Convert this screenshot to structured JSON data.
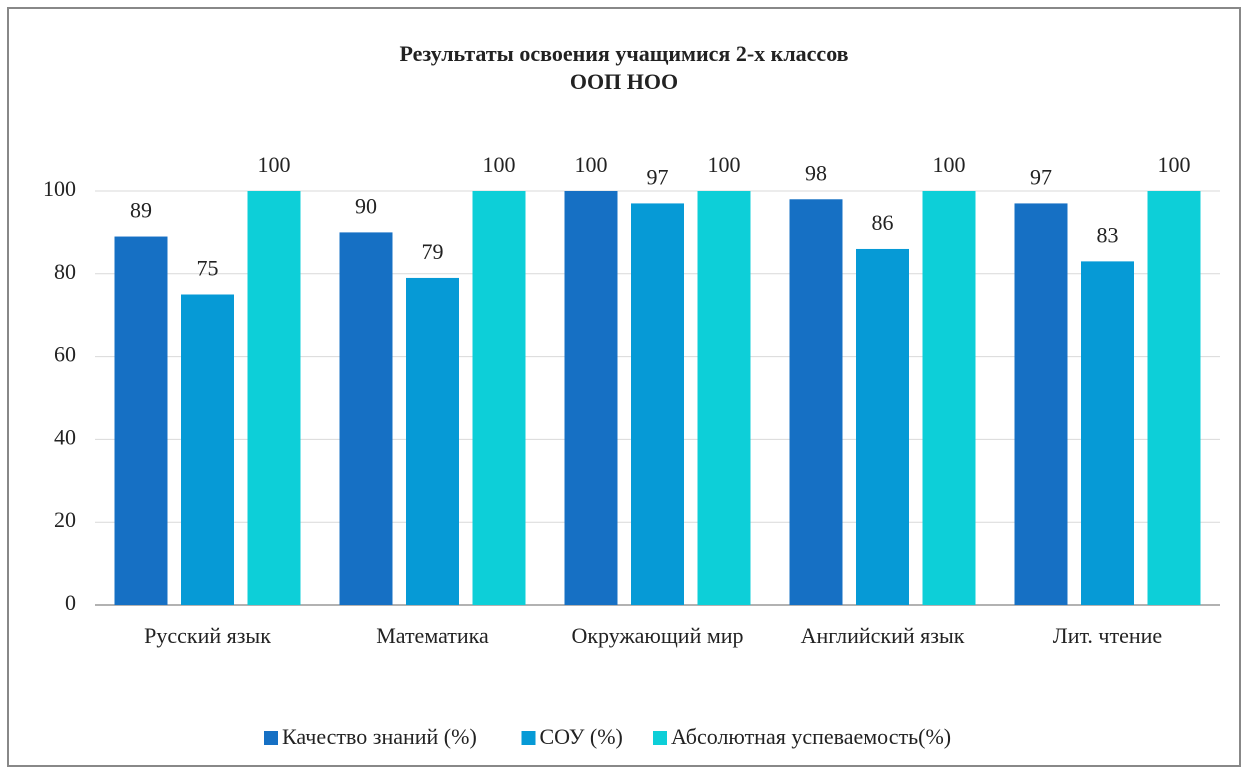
{
  "chart_data": {
    "type": "bar",
    "title": [
      "Результаты освоения учащимися 2-х классов",
      "ООП НОО"
    ],
    "categories": [
      "Русский язык",
      "Математика",
      "Окружающий мир",
      "Английский язык",
      "Лит. чтение"
    ],
    "series": [
      {
        "name": "Качество знаний (%)",
        "color": "#1670c4",
        "values": [
          89,
          90,
          100,
          98,
          97
        ]
      },
      {
        "name": "СОУ (%)",
        "color": "#069ad6",
        "values": [
          75,
          79,
          97,
          86,
          83
        ]
      },
      {
        "name": "Абсолютная успеваемость(%)",
        "color": "#0dcfd8",
        "values": [
          100,
          100,
          100,
          100,
          100
        ]
      }
    ],
    "ylim": [
      0,
      100
    ],
    "yticks": [
      0,
      20,
      40,
      60,
      80,
      100
    ],
    "grid": true,
    "legend": "bottom"
  }
}
